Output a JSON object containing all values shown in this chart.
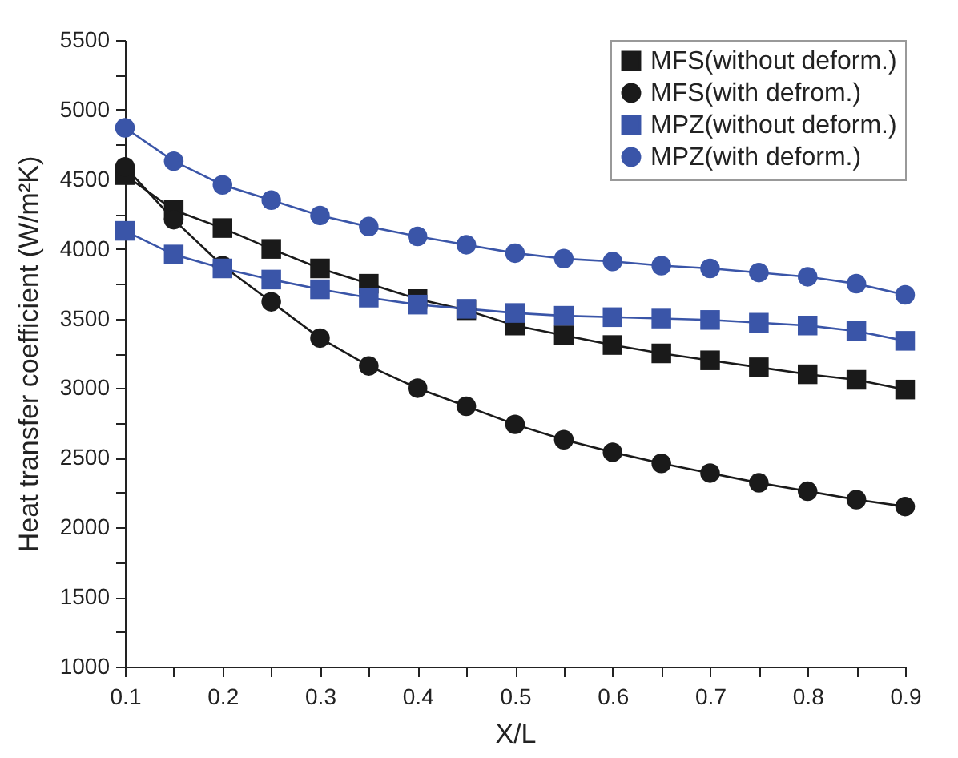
{
  "chart_data": {
    "type": "line",
    "xlabel": "X/L",
    "ylabel": "Heat transfer coefficient (W/m²K)",
    "x": [
      0.1,
      0.15,
      0.2,
      0.25,
      0.3,
      0.35,
      0.4,
      0.45,
      0.5,
      0.55,
      0.6,
      0.65,
      0.7,
      0.75,
      0.8,
      0.85,
      0.9
    ],
    "series": [
      {
        "name": "MFS(without deform.)",
        "color": "#1a1a1a",
        "marker": "square",
        "values": [
          4530,
          4280,
          4150,
          4000,
          3860,
          3750,
          3640,
          3560,
          3450,
          3380,
          3310,
          3250,
          3200,
          3150,
          3100,
          3060,
          2990
        ]
      },
      {
        "name": "MFS(with defrom.)",
        "color": "#1a1a1a",
        "marker": "circle",
        "values": [
          4590,
          4210,
          3880,
          3620,
          3360,
          3160,
          3000,
          2870,
          2740,
          2630,
          2540,
          2460,
          2390,
          2320,
          2260,
          2200,
          2150
        ]
      },
      {
        "name": "MPZ(without deform.)",
        "color": "#3a55a8",
        "marker": "square",
        "values": [
          4130,
          3960,
          3860,
          3780,
          3710,
          3650,
          3600,
          3570,
          3540,
          3520,
          3510,
          3500,
          3490,
          3470,
          3450,
          3410,
          3340
        ]
      },
      {
        "name": "MPZ(with deform.)",
        "color": "#3a55a8",
        "marker": "circle",
        "values": [
          4870,
          4630,
          4460,
          4350,
          4240,
          4160,
          4090,
          4030,
          3970,
          3930,
          3910,
          3880,
          3860,
          3830,
          3800,
          3750,
          3670
        ]
      }
    ],
    "xlim": [
      0.1,
      0.9
    ],
    "xticks": [
      0.1,
      {
        "value": 0.15,
        "label": null
      },
      0.2,
      {
        "value": 0.25,
        "label": null
      },
      0.3,
      {
        "value": 0.35,
        "label": null
      },
      0.4,
      {
        "value": 0.45,
        "label": null
      },
      0.5,
      {
        "value": 0.55,
        "label": null
      },
      0.6,
      {
        "value": 0.65,
        "label": null
      },
      0.7,
      {
        "value": 0.75,
        "label": null
      },
      0.8,
      {
        "value": 0.85,
        "label": null
      },
      0.9
    ],
    "ylim": [
      1000,
      5500
    ],
    "yticks": [
      1000,
      {
        "value": 1250,
        "label": null
      },
      1500,
      {
        "value": 1750,
        "label": null
      },
      2000,
      {
        "value": 2250,
        "label": null
      },
      2500,
      {
        "value": 2750,
        "label": null
      },
      3000,
      {
        "value": 3250,
        "label": null
      },
      3500,
      {
        "value": 3750,
        "label": null
      },
      4000,
      {
        "value": 4250,
        "label": null
      },
      4500,
      {
        "value": 4750,
        "label": null
      },
      5000,
      {
        "value": 5250,
        "label": null
      },
      5500
    ],
    "legend": "top right",
    "grid": false,
    "line_style": "solid"
  }
}
